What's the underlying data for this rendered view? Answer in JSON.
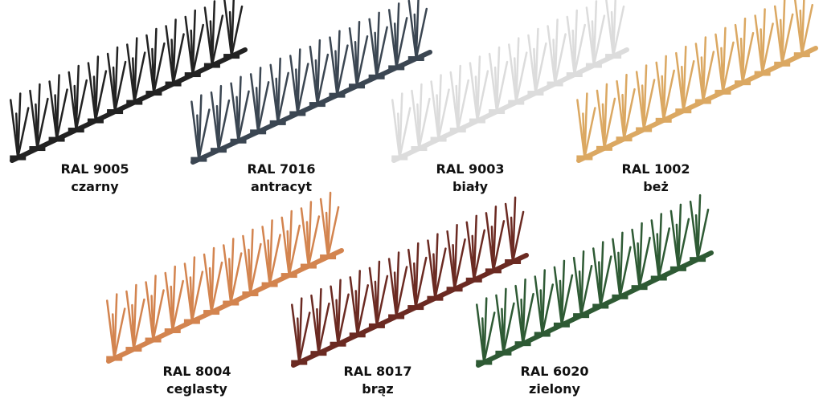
{
  "items": [
    {
      "code": "RAL 9005",
      "name": "czarny"
    },
    {
      "code": "RAL 7016",
      "name": "antracyt"
    },
    {
      "code": "RAL 9003",
      "name": "biały"
    },
    {
      "code": "RAL 1002",
      "name": "beż"
    },
    {
      "code": "RAL 8004",
      "name": "ceglasty"
    },
    {
      "code": "RAL 8017",
      "name": "brąz"
    },
    {
      "code": "RAL 6020",
      "name": "zielony"
    }
  ]
}
